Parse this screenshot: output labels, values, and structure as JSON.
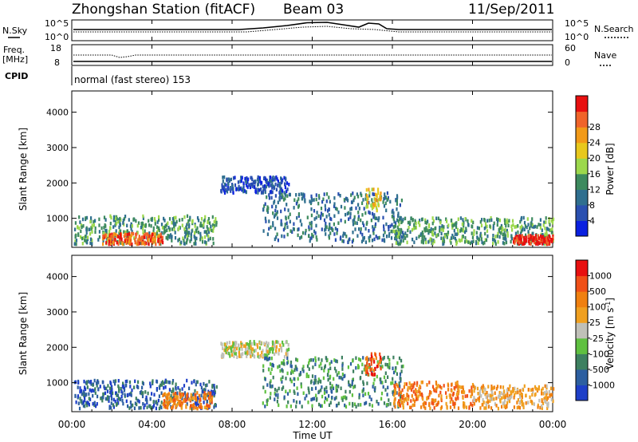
{
  "header": {
    "title": "Zhongshan Station (fitACF)",
    "beam": "Beam 03",
    "date": "11/Sep/2011"
  },
  "summary": {
    "nsky_label": "N.Sky",
    "nsearch_label": "N.Search",
    "freq_label_line1": "Freq.",
    "freq_label_line2": "[MHz]",
    "nave_label": "Nave",
    "cpid_label": "CPID",
    "cpid_text": "normal (fast stereo) 153",
    "noise_left_ticks": [
      "10^5",
      "10^0"
    ],
    "noise_right_ticks": [
      "10^5",
      "10^0"
    ],
    "freq_ticks": [
      "18",
      "8"
    ],
    "nave_ticks": [
      "60",
      "0"
    ]
  },
  "x_axis": {
    "label": "Time UT",
    "ticks": [
      "00:00",
      "04:00",
      "08:00",
      "12:00",
      "16:00",
      "20:00",
      "00:00"
    ]
  },
  "chart_data": [
    {
      "type": "heatmap",
      "panel": "power",
      "ylabel": "Slant Range [km]",
      "yticks": [
        1000,
        2000,
        3000,
        4000
      ],
      "ylim": [
        180,
        4600
      ],
      "xlim": [
        0,
        24
      ],
      "colorbar": {
        "label": "Power [dB]",
        "ticks": [
          "4",
          "8",
          "12",
          "16",
          "20",
          "24",
          "28"
        ],
        "colors": [
          "#0a20e0",
          "#2a50b0",
          "#2f6f8f",
          "#3d8a5e",
          "#9cd84c",
          "#e8c81c",
          "#f29a18",
          "#f0642a",
          "#e81010"
        ]
      },
      "regions": [
        {
          "t0": 0.1,
          "t1": 7.2,
          "r0": 250,
          "r1": 1050,
          "level": 3
        },
        {
          "t0": 1.5,
          "t1": 4.5,
          "r0": 250,
          "r1": 550,
          "level": 7
        },
        {
          "t0": 7.4,
          "t1": 10.8,
          "r0": 1700,
          "r1": 2150,
          "level": 1
        },
        {
          "t0": 9.5,
          "t1": 16.5,
          "r0": 300,
          "r1": 1700,
          "level": 2
        },
        {
          "t0": 14.6,
          "t1": 15.4,
          "r0": 1200,
          "r1": 1800,
          "level": 5
        },
        {
          "t0": 16.0,
          "t1": 24.0,
          "r0": 250,
          "r1": 1000,
          "level": 3
        },
        {
          "t0": 22.0,
          "t1": 24.0,
          "r0": 250,
          "r1": 500,
          "level": 8
        }
      ]
    },
    {
      "type": "heatmap",
      "panel": "velocity",
      "ylabel": "Slant Range [km]",
      "yticks": [
        1000,
        2000,
        3000,
        4000
      ],
      "ylim": [
        180,
        4600
      ],
      "xlim": [
        0,
        24
      ],
      "colorbar": {
        "label": "Velocity [m s^-1]",
        "ticks": [
          "1000",
          "500",
          "100",
          "25",
          "-25",
          "-100",
          "-500",
          "-1000"
        ],
        "colors": [
          "#1e3fc8",
          "#2d5fa0",
          "#3d8060",
          "#5fc040",
          "#c0c0b8",
          "#f0a020",
          "#f08010",
          "#f05018",
          "#e81010"
        ]
      },
      "regions": [
        {
          "t0": 0.1,
          "t1": 7.2,
          "r0": 250,
          "r1": 1050,
          "level": 1
        },
        {
          "t0": 4.5,
          "t1": 7.0,
          "r0": 250,
          "r1": 700,
          "level": 6
        },
        {
          "t0": 7.4,
          "t1": 10.8,
          "r0": 1700,
          "r1": 2150,
          "level": 4
        },
        {
          "t0": 9.5,
          "t1": 16.5,
          "r0": 300,
          "r1": 1700,
          "level": 2
        },
        {
          "t0": 14.6,
          "t1": 15.4,
          "r0": 1200,
          "r1": 1800,
          "level": 7
        },
        {
          "t0": 16.0,
          "t1": 20.0,
          "r0": 250,
          "r1": 1000,
          "level": 6
        },
        {
          "t0": 20.0,
          "t1": 24.0,
          "r0": 250,
          "r1": 900,
          "level": 5
        }
      ]
    }
  ]
}
